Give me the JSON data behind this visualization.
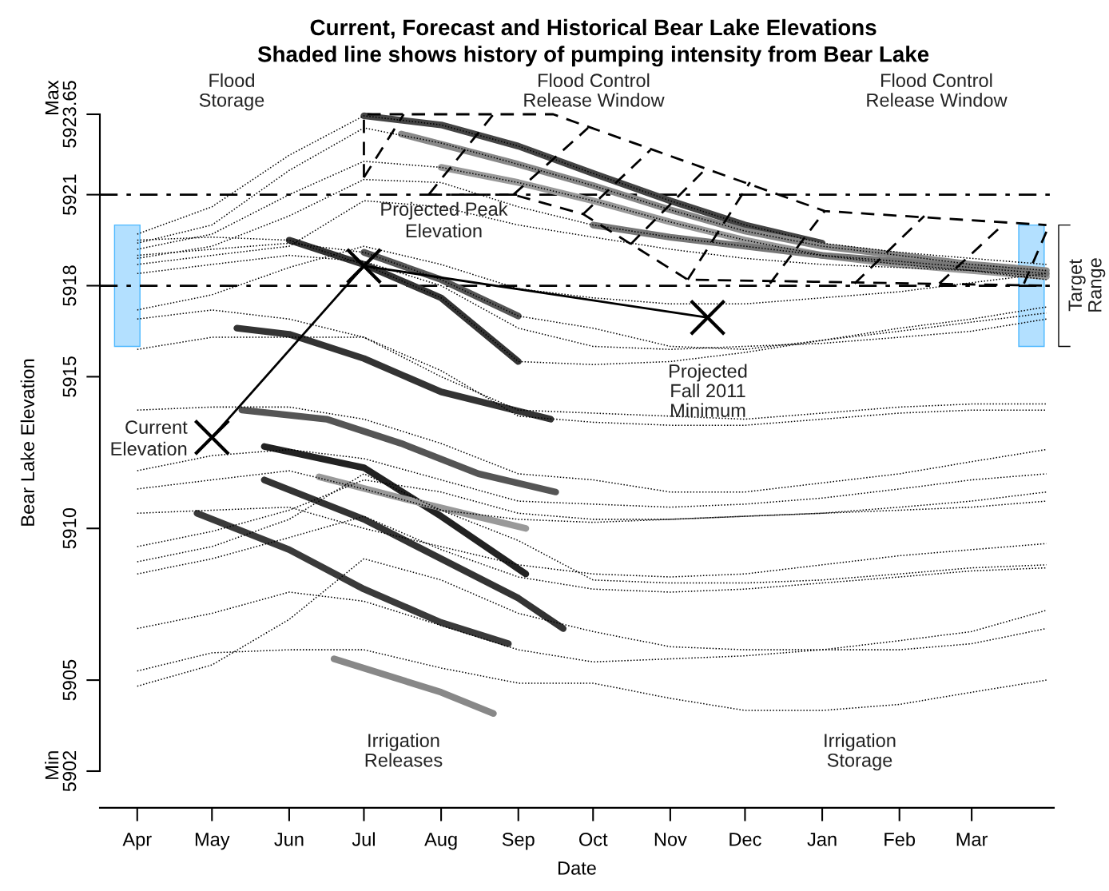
{
  "chart_data": {
    "type": "line",
    "title": "Current, Forecast and Historical Bear Lake Elevations",
    "subtitle": "Shaded line shows history of pumping intensity from Bear Lake",
    "xlabel": "Date",
    "ylabel": "Bear Lake Elevation",
    "xlim": [
      "2011-03-17",
      "2012-04-03"
    ],
    "xticks": [
      {
        "value": "2011-04-01",
        "label": "Apr"
      },
      {
        "value": "2011-05-01",
        "label": "May"
      },
      {
        "value": "2011-06-01",
        "label": "Jun"
      },
      {
        "value": "2011-07-01",
        "label": "Jul"
      },
      {
        "value": "2011-08-01",
        "label": "Aug"
      },
      {
        "value": "2011-09-01",
        "label": "Sep"
      },
      {
        "value": "2011-10-01",
        "label": "Oct"
      },
      {
        "value": "2011-11-01",
        "label": "Nov"
      },
      {
        "value": "2011-12-01",
        "label": "Dec"
      },
      {
        "value": "2012-01-01",
        "label": "Jan"
      },
      {
        "value": "2012-02-01",
        "label": "Feb"
      },
      {
        "value": "2012-03-01",
        "label": "Mar"
      }
    ],
    "ylim": [
      5902,
      5923.65
    ],
    "yticks": [
      {
        "value": 5902,
        "label": "Min\n5902"
      },
      5905,
      5910,
      5915,
      5918,
      5921,
      {
        "value": 5923.65,
        "label": "Max\n5923.65"
      }
    ],
    "x": [
      "2011-04-01",
      "2011-05-01",
      "2011-06-01",
      "2011-07-01",
      "2011-08-01",
      "2011-09-01",
      "2011-10-01",
      "2011-11-01",
      "2011-12-01",
      "2012-01-01",
      "2012-02-01",
      "2012-03-01",
      "2012-03-31"
    ],
    "grid": false,
    "legend": false,
    "series": [
      {
        "type": "bar",
        "color": "#b3e0ff",
        "x": [
          "2011-03-28",
          "2012-03-25"
        ],
        "base": [
          5916,
          5916
        ],
        "values": [
          4,
          4
        ]
      },
      {
        "line_style": "dotted",
        "color": "#000000",
        "values": [
          5919.7,
          5920.6,
          5922.3,
          5923.6,
          5923.3,
          5922.6,
          5921.7,
          5920.8,
          5920.0,
          5919.4,
          5919.1,
          5918.9,
          5918.7
        ]
      },
      {
        "line_style": "dotted",
        "color": "#000000",
        "values": [
          5919.4,
          5920.0,
          5921.8,
          5923.2,
          5922.7,
          5922.0,
          5921.3,
          5920.5,
          5919.8,
          5919.3,
          5919.0,
          5918.7,
          5918.5
        ]
      },
      {
        "line_style": "dotted",
        "color": "#000000",
        "values": [
          5919.2,
          5919.7,
          5921.0,
          5922.1,
          5921.9,
          5921.4,
          5920.8,
          5920.1,
          5919.5,
          5919.0,
          5918.7,
          5918.5,
          5918.3
        ]
      },
      {
        "line_style": "dotted",
        "color": "#000000",
        "values": [
          5918.9,
          5919.3,
          5920.3,
          5921.5,
          5921.4,
          5920.6,
          5920.0,
          5919.6,
          5919.3,
          5919.0,
          5918.8,
          5918.6,
          5918.4
        ]
      },
      {
        "line_style": "dotted",
        "color": "#000000",
        "values": [
          5918.7,
          5919.0,
          5919.3,
          5920.8,
          5920.6,
          5920.0,
          5919.6,
          5919.2,
          5918.9,
          5918.7,
          5918.6,
          5918.5,
          5918.2
        ]
      },
      {
        "line_style": "dotted",
        "color": "#000000",
        "values": [
          5919.5,
          5919.6,
          5919.5,
          5918.7,
          5917.6,
          5915.5,
          5915.4,
          5915.5,
          5915.8,
          5916.2,
          5916.5,
          5916.8,
          5917.1
        ]
      },
      {
        "line_style": "dotted",
        "color": "#000000",
        "values": [
          5919.0,
          5919.2,
          5919.4,
          5919.1,
          5918.2,
          5917.0,
          5916.6,
          5916.0,
          5915.9,
          5916.2,
          5916.6,
          5916.9,
          5917.3
        ]
      },
      {
        "line_style": "dotted",
        "color": "#000000",
        "values": [
          5918.4,
          5918.7,
          5919.0,
          5918.8,
          5918.0,
          5916.6,
          5916.0,
          5915.9,
          5916.0,
          5916.1,
          5916.3,
          5916.5,
          5916.9
        ]
      },
      {
        "line_style": "dotted",
        "color": "#000000",
        "values": [
          5917.2,
          5917.7,
          5918.6,
          5919.3,
          5918.7,
          5917.9,
          5917.6,
          5917.4,
          5917.4,
          5917.6,
          5917.8,
          5918.1,
          5918.4
        ]
      },
      {
        "line_style": "dotted",
        "color": "#000000",
        "values": [
          5916.9,
          5917.2,
          5916.9,
          5916.3,
          5915.0,
          5913.9,
          5913.8,
          5913.7,
          5913.6,
          5913.8,
          5914.0,
          5914.1,
          5914.1
        ]
      },
      {
        "line_style": "dotted",
        "color": "#000000",
        "values": [
          5915.9,
          5916.3,
          5916.3,
          5916.3,
          5915.2,
          5913.7,
          5913.5,
          5913.4,
          5913.4,
          5913.6,
          5913.8,
          5913.9,
          5913.9
        ]
      },
      {
        "line_style": "dotted",
        "color": "#000000",
        "values": [
          5913.9,
          5914.0,
          5914.0,
          5913.6,
          5912.8,
          5911.8,
          5911.6,
          5911.2,
          5911.2,
          5911.5,
          5911.8,
          5912.2,
          5912.6
        ]
      },
      {
        "line_style": "dotted",
        "color": "#000000",
        "values": [
          5911.9,
          5912.4,
          5912.6,
          5912.3,
          5911.6,
          5910.9,
          5910.8,
          5910.7,
          5910.8,
          5911.0,
          5911.3,
          5911.6,
          5911.8
        ]
      },
      {
        "line_style": "dotted",
        "color": "#000000",
        "values": [
          5911.3,
          5911.6,
          5911.9,
          5911.3,
          5910.6,
          5910.3,
          5910.2,
          5910.3,
          5910.4,
          5910.5,
          5910.7,
          5910.9,
          5911.2
        ]
      },
      {
        "line_style": "dotted",
        "color": "#000000",
        "values": [
          5910.5,
          5910.6,
          5910.7,
          5910.0,
          5909.4,
          5908.8,
          5908.5,
          5908.4,
          5908.5,
          5908.8,
          5909.1,
          5909.3,
          5909.5
        ]
      },
      {
        "line_style": "dotted",
        "color": "#000000",
        "values": [
          5909.4,
          5909.9,
          5910.6,
          5911.6,
          5911.2,
          5910.5,
          5910.3,
          5910.3,
          5910.4,
          5910.5,
          5910.6,
          5910.7,
          5910.9
        ]
      },
      {
        "line_style": "dotted",
        "color": "#000000",
        "values": [
          5908.9,
          5909.4,
          5910.3,
          5911.8,
          5910.6,
          5909.6,
          5908.3,
          5908.2,
          5908.2,
          5908.3,
          5908.5,
          5908.7,
          5908.8
        ]
      },
      {
        "line_style": "dotted",
        "color": "#000000",
        "values": [
          5908.5,
          5909.0,
          5909.7,
          5910.4,
          5909.3,
          5908.4,
          5908.0,
          5907.9,
          5908.0,
          5908.2,
          5908.4,
          5908.6,
          5908.7
        ]
      },
      {
        "line_style": "dotted",
        "color": "#000000",
        "values": [
          5906.7,
          5907.2,
          5907.9,
          5907.6,
          5906.8,
          5906.0,
          5905.6,
          5905.7,
          5905.8,
          5906.0,
          5906.3,
          5906.6,
          5907.3
        ]
      },
      {
        "line_style": "dotted",
        "color": "#000000",
        "values": [
          5905.3,
          5905.9,
          5906.0,
          5906.0,
          5905.4,
          5904.9,
          5904.9,
          5904.4,
          5904.0,
          5904.0,
          5904.2,
          5904.6,
          5905.0
        ]
      },
      {
        "line_style": "dotted",
        "color": "#000000",
        "values": [
          5904.8,
          5905.5,
          5907.0,
          5909.0,
          5908.3,
          5907.2,
          5906.6,
          5906.1,
          5906.0,
          5906.0,
          5906.0,
          5906.2,
          5906.7
        ]
      },
      {
        "line_style": "solid",
        "color": "#444444",
        "x": [
          "2011-07-01",
          "2011-08-01",
          "2011-09-01",
          "2011-10-01",
          "2011-11-01",
          "2011-12-01",
          "2012-01-01"
        ],
        "values": [
          5923.6,
          5923.3,
          5922.6,
          5921.7,
          5920.8,
          5920.0,
          5919.4
        ]
      },
      {
        "line_style": "solid",
        "color": "#888888",
        "x": [
          "2011-07-16",
          "2011-09-01",
          "2011-10-01",
          "2011-11-01",
          "2011-12-01",
          "2012-01-01",
          "2012-02-01",
          "2012-03-01",
          "2012-03-31"
        ],
        "values": [
          5923.0,
          5922.0,
          5921.3,
          5920.5,
          5919.8,
          5919.3,
          5919.0,
          5918.7,
          5918.5
        ]
      },
      {
        "line_style": "solid",
        "color": "#999999",
        "x": [
          "2011-08-01",
          "2011-09-01",
          "2011-10-01",
          "2011-11-01",
          "2011-12-01",
          "2012-01-01",
          "2012-02-01",
          "2012-03-01",
          "2012-03-31"
        ],
        "values": [
          5921.9,
          5921.4,
          5920.8,
          5920.1,
          5919.5,
          5919.0,
          5918.7,
          5918.5,
          5918.3
        ]
      },
      {
        "line_style": "solid",
        "color": "#777777",
        "x": [
          "2011-10-01",
          "2011-11-01",
          "2011-12-01",
          "2012-01-01",
          "2012-02-01",
          "2012-03-01",
          "2012-03-31"
        ],
        "values": [
          5920.0,
          5919.6,
          5919.3,
          5919.0,
          5918.8,
          5918.6,
          5918.4
        ]
      },
      {
        "line_style": "solid",
        "color": "#333333",
        "x": [
          "2011-06-01",
          "2011-07-01",
          "2011-08-01",
          "2011-09-01"
        ],
        "values": [
          5919.5,
          5918.7,
          5917.6,
          5915.5
        ]
      },
      {
        "line_style": "solid",
        "color": "#555555",
        "x": [
          "2011-07-01",
          "2011-08-01",
          "2011-09-01"
        ],
        "values": [
          5919.1,
          5918.2,
          5917.0
        ]
      },
      {
        "line_style": "solid",
        "color": "#333333",
        "x": [
          "2011-05-11",
          "2011-06-01",
          "2011-07-01",
          "2011-08-01",
          "2011-09-14"
        ],
        "values": [
          5916.6,
          5916.4,
          5915.6,
          5914.5,
          5913.6
        ]
      },
      {
        "line_style": "solid",
        "color": "#555555",
        "x": [
          "2011-05-13",
          "2011-06-16",
          "2011-07-16",
          "2011-08-16",
          "2011-09-16"
        ],
        "values": [
          5913.9,
          5913.6,
          5912.8,
          5911.8,
          5911.2
        ]
      },
      {
        "line_style": "solid",
        "color": "#222222",
        "x": [
          "2011-05-22",
          "2011-07-01",
          "2011-08-01",
          "2011-09-04"
        ],
        "values": [
          5912.7,
          5912.0,
          5910.4,
          5908.5
        ]
      },
      {
        "line_style": "solid",
        "color": "#333333",
        "x": [
          "2011-05-22",
          "2011-07-01",
          "2011-08-01",
          "2011-09-01",
          "2011-09-19"
        ],
        "values": [
          5911.6,
          5910.3,
          5909.0,
          5907.7,
          5906.7
        ]
      },
      {
        "line_style": "solid",
        "color": "#3a3a3a",
        "x": [
          "2011-04-25",
          "2011-06-01",
          "2011-07-01",
          "2011-08-01",
          "2011-08-28"
        ],
        "values": [
          5910.5,
          5909.3,
          5908.0,
          5906.9,
          5906.2
        ]
      },
      {
        "line_style": "solid",
        "color": "#888888",
        "x": [
          "2011-06-19",
          "2011-08-01",
          "2011-08-22"
        ],
        "values": [
          5905.7,
          5904.6,
          5903.9
        ]
      },
      {
        "line_style": "solid",
        "color": "#999999",
        "x": [
          "2011-06-13",
          "2011-07-16",
          "2011-09-04"
        ],
        "values": [
          5911.7,
          5911.0,
          5910.0
        ]
      },
      {
        "line_style": "dashed",
        "color": "#000000",
        "x": [
          "2011-07-01",
          "2011-07-01",
          "2011-09-15",
          "2012-01-02",
          "2012-03-31"
        ],
        "values": [
          5921.57,
          5923.65,
          5923.65,
          5920.46,
          5920.0
        ]
      },
      {
        "line_style": "dashed",
        "color": "#000000",
        "x": [
          "2011-07-27",
          "2011-08-30",
          "2011-09-27",
          "2011-11-08",
          "2012-03-31"
        ],
        "values": [
          5921.0,
          5921.0,
          5920.36,
          5918.2,
          5918.0
        ]
      },
      {
        "line_style": "dashed",
        "color": "#000000",
        "x": [
          "2011-07-01",
          "2011-07-17",
          null,
          "2011-07-27",
          "2011-08-22",
          null,
          "2011-08-30",
          "2011-09-29",
          null,
          "2011-09-27",
          "2011-10-24",
          null,
          "2011-10-16",
          "2011-11-14",
          null,
          "2011-11-08",
          "2011-12-03",
          null,
          "2011-12-11",
          "2012-01-02",
          null,
          "2012-01-14",
          "2012-02-11",
          null,
          "2012-02-17",
          "2012-03-14",
          null,
          "2012-03-22",
          "2012-03-31"
        ],
        "values": [
          5921.57,
          5923.65,
          null,
          5921.0,
          5923.65,
          null,
          5921.0,
          5923.2,
          null,
          5920.36,
          5922.47,
          null,
          5919.36,
          5921.75,
          null,
          5918.2,
          5921.41,
          null,
          5918.07,
          5920.46,
          null,
          5918.07,
          5920.3,
          null,
          5918.07,
          5920.04,
          null,
          5918.07,
          5919.78
        ]
      },
      {
        "line_style": "solid",
        "marker": "cross",
        "color": "#000000",
        "x": [
          "2011-05-01",
          "2011-07-01",
          "2011-11-16"
        ],
        "values": [
          5913.0,
          5918.65,
          5916.95
        ]
      }
    ],
    "ref_lines": [
      {
        "axis": "y",
        "value": 5921,
        "line_style": "dashdot",
        "color": "#000000"
      },
      {
        "axis": "y",
        "value": 5918,
        "line_style": "dashdot",
        "color": "#000000"
      }
    ],
    "annotations": [
      "Flood\nStorage",
      "Flood Control\nRelease Window",
      "Flood Control\nRelease Window",
      {
        "text": "Projected Peak\nElevation",
        "x": "2011-07-01",
        "y": 5918.65
      },
      {
        "text": "Current\nElevation",
        "x": "2011-05-01",
        "y": 5913.0
      },
      "Projected\nFall 2011\nMinimum",
      "Irrigation\nReleases",
      "Irrigation\nStorage",
      "Target\nRange"
    ]
  }
}
